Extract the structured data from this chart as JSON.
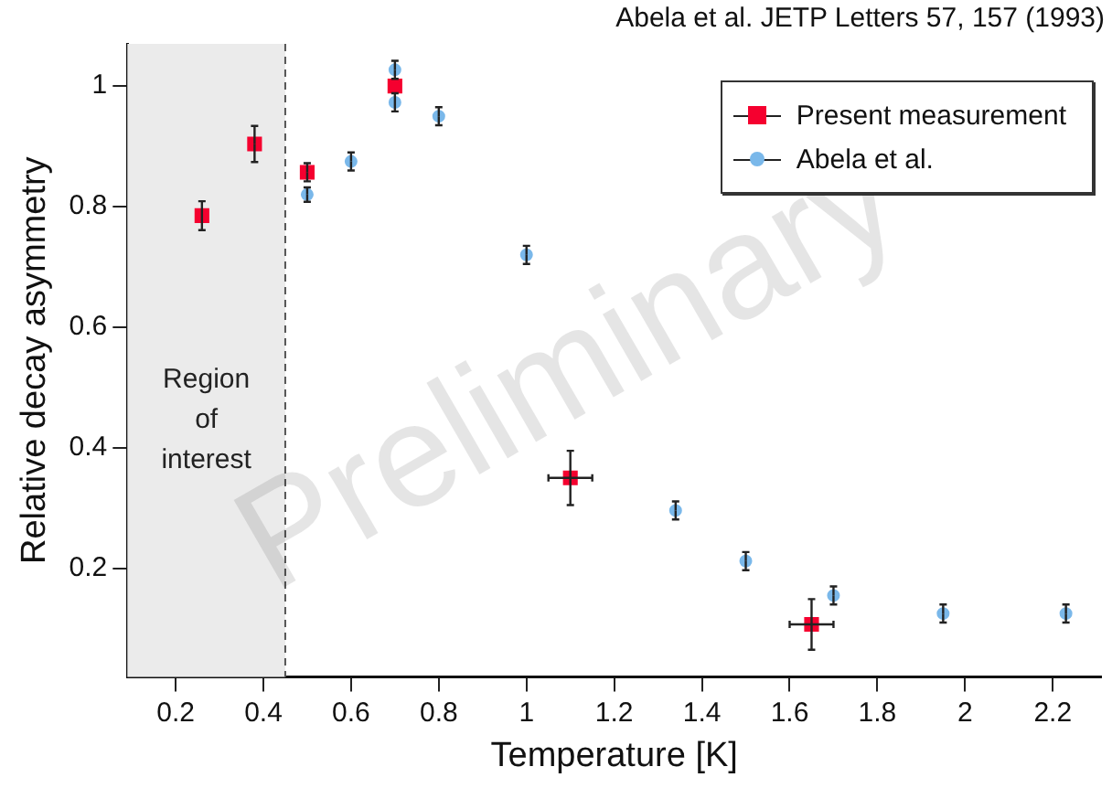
{
  "chart_data": {
    "type": "scatter",
    "xlabel": "Temperature [K]",
    "ylabel": "Relative decay asymmetry",
    "annotations": [
      "Abela et al. JETP Letters 57, 157 (1993)",
      "Preliminary"
    ],
    "xlim": [
      0.09,
      2.31
    ],
    "xticks": [
      0.2,
      0.4,
      0.6,
      0.8,
      1,
      1.2,
      1.4,
      1.6,
      1.8,
      2,
      2.2
    ],
    "ylim": [
      0.02,
      1.07
    ],
    "yticks": [
      0.2,
      0.4,
      0.6,
      0.8,
      1
    ],
    "grid": false,
    "legend": "top right",
    "bands": [
      {
        "axis": "x",
        "from": 0.09,
        "to": 0.45,
        "label": "Region of interest",
        "color": "#ebebeb"
      }
    ],
    "ref_lines": [
      {
        "axis": "x",
        "value": 0.45,
        "line_style": "dashed",
        "color": "#555555"
      }
    ],
    "series": [
      {
        "name": "Present measurement",
        "color": "#f5002f",
        "marker": "square",
        "x": [
          0.26,
          0.38,
          0.5,
          0.7,
          1.1,
          1.65
        ],
        "values": [
          0.785,
          0.904,
          0.857,
          1.0,
          0.35,
          0.107
        ],
        "errors": [
          0.024,
          0.03,
          0.015,
          null,
          0.045,
          0.042
        ],
        "xerrors": [
          null,
          null,
          null,
          null,
          0.05,
          0.05
        ]
      },
      {
        "name": "Abela et al.",
        "color": "#7ab8ea",
        "marker": "circle",
        "x": [
          0.5,
          0.6,
          0.7,
          0.7,
          0.8,
          1.0,
          1.34,
          1.5,
          1.7,
          1.95,
          2.23
        ],
        "values": [
          0.82,
          0.875,
          1.027,
          0.973,
          0.95,
          0.72,
          0.296,
          0.212,
          0.155,
          0.125,
          0.125
        ],
        "errors": [
          0.012,
          0.015,
          0.015,
          0.015,
          0.015,
          0.015,
          0.015,
          0.015,
          0.015,
          0.015,
          0.015
        ]
      }
    ]
  }
}
